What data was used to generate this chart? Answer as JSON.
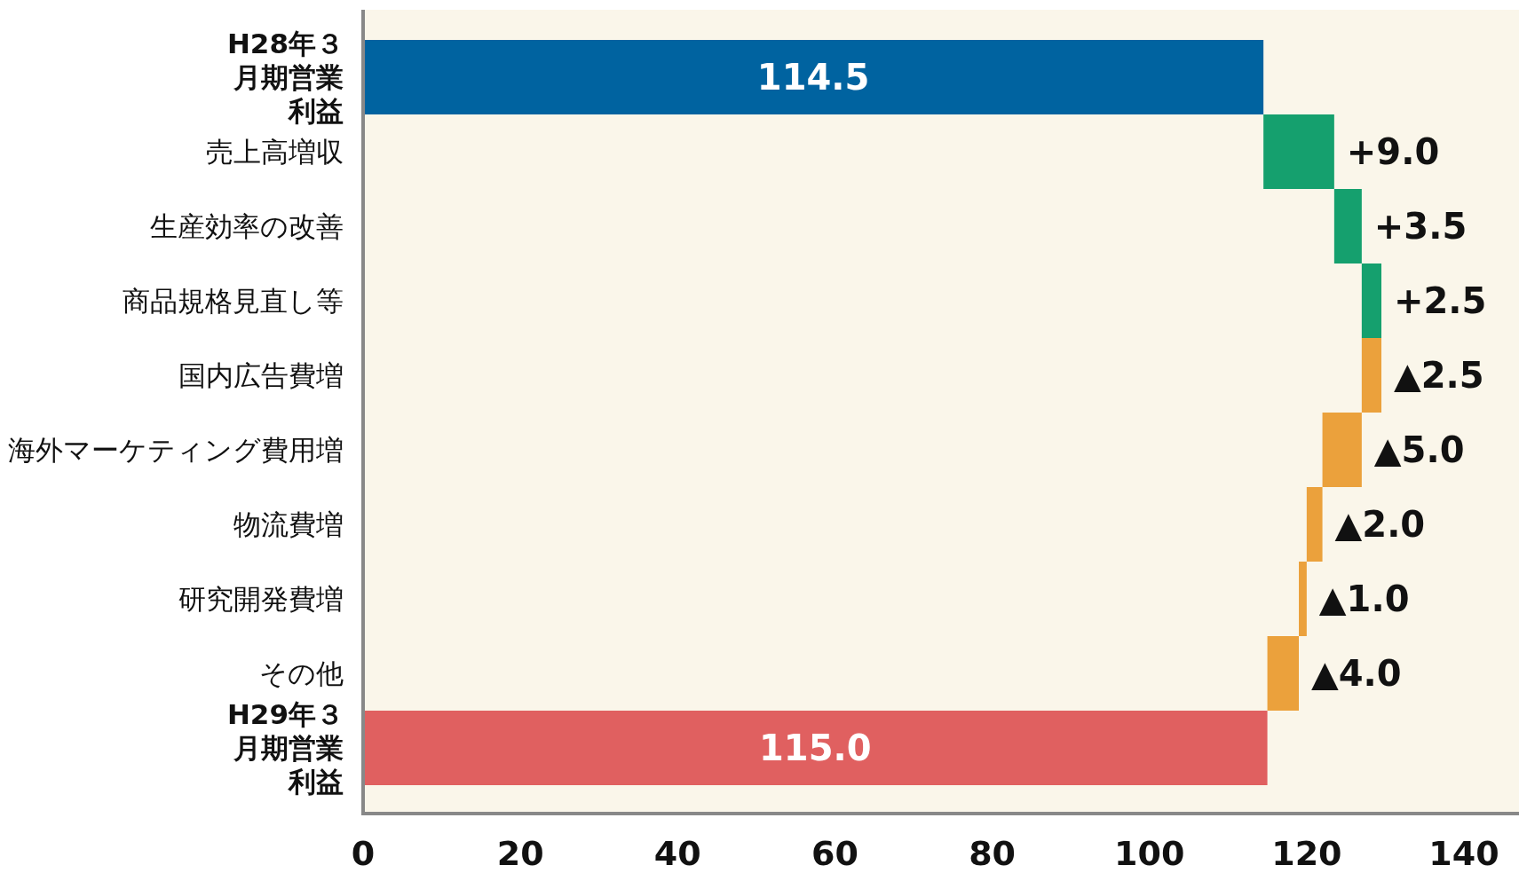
{
  "chart_data": {
    "type": "bar",
    "orientation": "horizontal",
    "categories": [
      "H28年３月期営業利益",
      "売上高増収",
      "生産効率の改善",
      "商品規格見直し等",
      "国内広告費増",
      "海外マーケティング費用増",
      "物流費増",
      "研究開発費増",
      "その他",
      "H29年３月期営業利益"
    ],
    "values": [
      114.5,
      9.0,
      3.5,
      2.5,
      -2.5,
      -5.0,
      -2.0,
      -1.0,
      -4.0,
      115.0
    ],
    "base": [
      0,
      114.5,
      123.5,
      127,
      129.5,
      127,
      122,
      120,
      119,
      0
    ],
    "colors": [
      "#0063a0",
      "#15a06e",
      "#15a06e",
      "#15a06e",
      "#eba13c",
      "#eba13c",
      "#eba13c",
      "#eba13c",
      "#eba13c",
      "#e06060"
    ],
    "value_labels": [
      "114.5",
      "+9.0",
      "+3.5",
      "+2.5",
      "▲2.5",
      "▲5.0",
      "▲2.0",
      "▲1.0",
      "▲4.0",
      "115.0"
    ],
    "xlim": [
      0,
      147
    ],
    "xticks": [
      0,
      20,
      40,
      60,
      80,
      100,
      120,
      140
    ]
  }
}
